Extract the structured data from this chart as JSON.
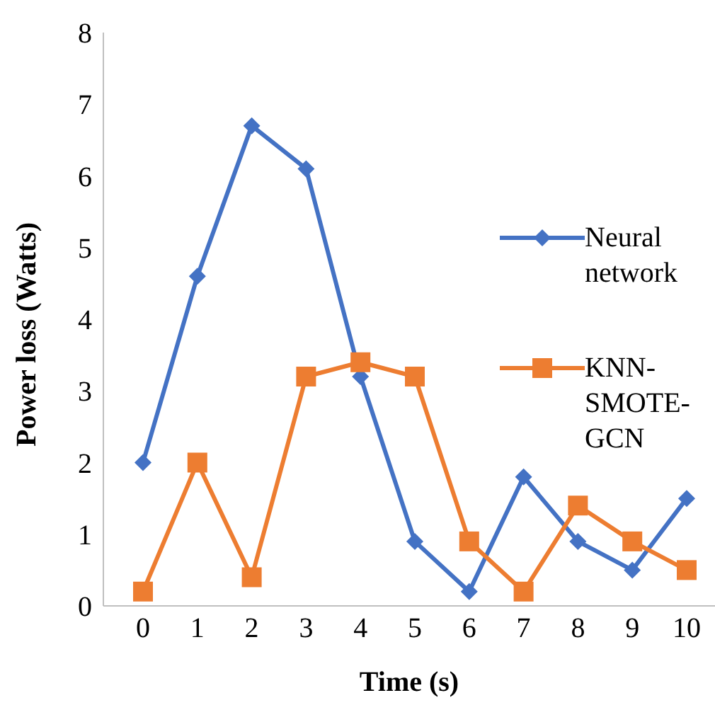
{
  "chart_data": {
    "type": "line",
    "xlabel": "Time (s)",
    "ylabel": "Power loss (Watts)",
    "categories": [
      "0",
      "1",
      "2",
      "3",
      "4",
      "5",
      "6",
      "7",
      "8",
      "9",
      "10"
    ],
    "ylim": [
      0,
      8
    ],
    "yticks": [
      0,
      1,
      2,
      3,
      4,
      5,
      6,
      7,
      8
    ],
    "grid": false,
    "legend": "right",
    "series": [
      {
        "name": "Neural network",
        "color": "#4472c4",
        "marker": "diamond",
        "values": [
          2,
          4.6,
          6.7,
          6.1,
          3.2,
          0.9,
          0.2,
          1.8,
          0.9,
          0.5,
          1.5
        ]
      },
      {
        "name": "KNN-SMOTE-GCN",
        "color": "#ed7d31",
        "marker": "square",
        "values": [
          0.2,
          2,
          0.4,
          3.2,
          3.4,
          3.2,
          0.9,
          0.2,
          1.4,
          0.9,
          0.5
        ]
      }
    ]
  }
}
